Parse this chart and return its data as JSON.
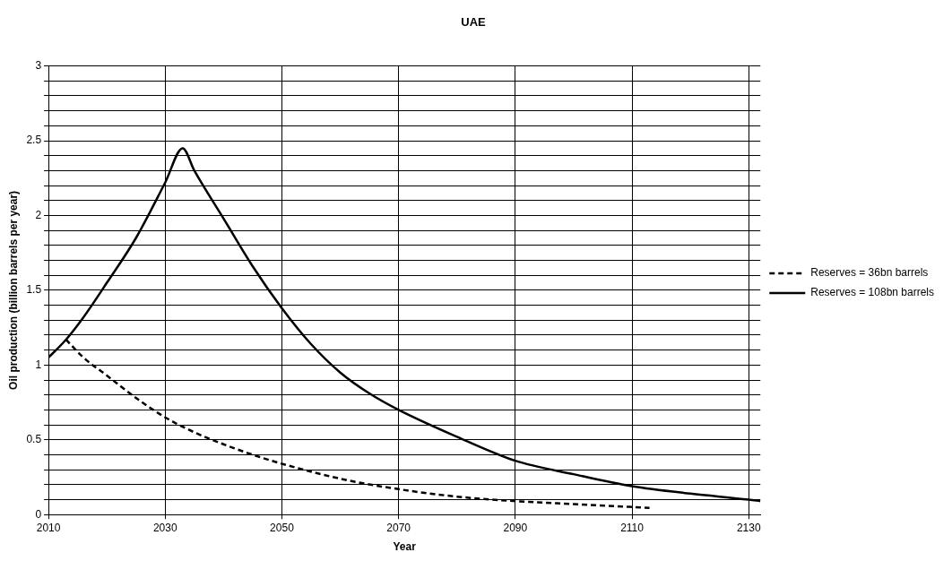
{
  "chart_data": {
    "type": "line",
    "title": "UAE",
    "xlabel": "Year",
    "ylabel": "Oil production (billion barrels per year)",
    "xlim": [
      2010,
      2132
    ],
    "xticks": [
      2010,
      2030,
      2050,
      2070,
      2090,
      2110,
      2130
    ],
    "ylim": [
      0,
      3
    ],
    "yticks": [
      0,
      {
        "value": 0.1,
        "label": null
      },
      {
        "value": 0.2,
        "label": null
      },
      {
        "value": 0.3,
        "label": null
      },
      {
        "value": 0.4,
        "label": null
      },
      0.5,
      {
        "value": 0.6,
        "label": null
      },
      {
        "value": 0.7,
        "label": null
      },
      {
        "value": 0.8,
        "label": null
      },
      {
        "value": 0.9,
        "label": null
      },
      1,
      {
        "value": 1.1,
        "label": null
      },
      {
        "value": 1.2,
        "label": null
      },
      {
        "value": 1.3,
        "label": null
      },
      {
        "value": 1.4,
        "label": null
      },
      1.5,
      {
        "value": 1.6,
        "label": null
      },
      {
        "value": 1.7,
        "label": null
      },
      {
        "value": 1.8,
        "label": null
      },
      {
        "value": 1.9,
        "label": null
      },
      2,
      {
        "value": 2.1,
        "label": null
      },
      {
        "value": 2.2,
        "label": null
      },
      {
        "value": 2.3,
        "label": null
      },
      {
        "value": 2.4,
        "label": null
      },
      2.5,
      {
        "value": 2.6,
        "label": null
      },
      {
        "value": 2.7,
        "label": null
      },
      {
        "value": 2.8,
        "label": null
      },
      {
        "value": 2.9,
        "label": null
      },
      3
    ],
    "grid": true,
    "legend": "right",
    "marker": "none",
    "series": [
      {
        "name": "Reserves = 36bn barrels",
        "color": "#000000",
        "line_style": "dashed",
        "x": [
          2013,
          2016,
          2020,
          2025,
          2030,
          2035,
          2040,
          2045,
          2050,
          2060,
          2070,
          2080,
          2090,
          2100,
          2113
        ],
        "values": [
          1.17,
          1.05,
          0.93,
          0.78,
          0.65,
          0.55,
          0.47,
          0.4,
          0.34,
          0.24,
          0.17,
          0.12,
          0.09,
          0.07,
          0.045
        ]
      },
      {
        "name": "Reserves = 108bn barrels",
        "color": "#000000",
        "line_style": "solid",
        "x": [
          2010,
          2013,
          2016,
          2020,
          2025,
          2030,
          2033,
          2035,
          2040,
          2045,
          2050,
          2055,
          2060,
          2065,
          2070,
          2080,
          2090,
          2100,
          2110,
          2120,
          2130,
          2132
        ],
        "values": [
          1.05,
          1.17,
          1.32,
          1.55,
          1.85,
          2.22,
          2.45,
          2.3,
          1.98,
          1.66,
          1.38,
          1.14,
          0.95,
          0.81,
          0.7,
          0.52,
          0.36,
          0.27,
          0.19,
          0.14,
          0.1,
          0.09
        ]
      }
    ]
  }
}
